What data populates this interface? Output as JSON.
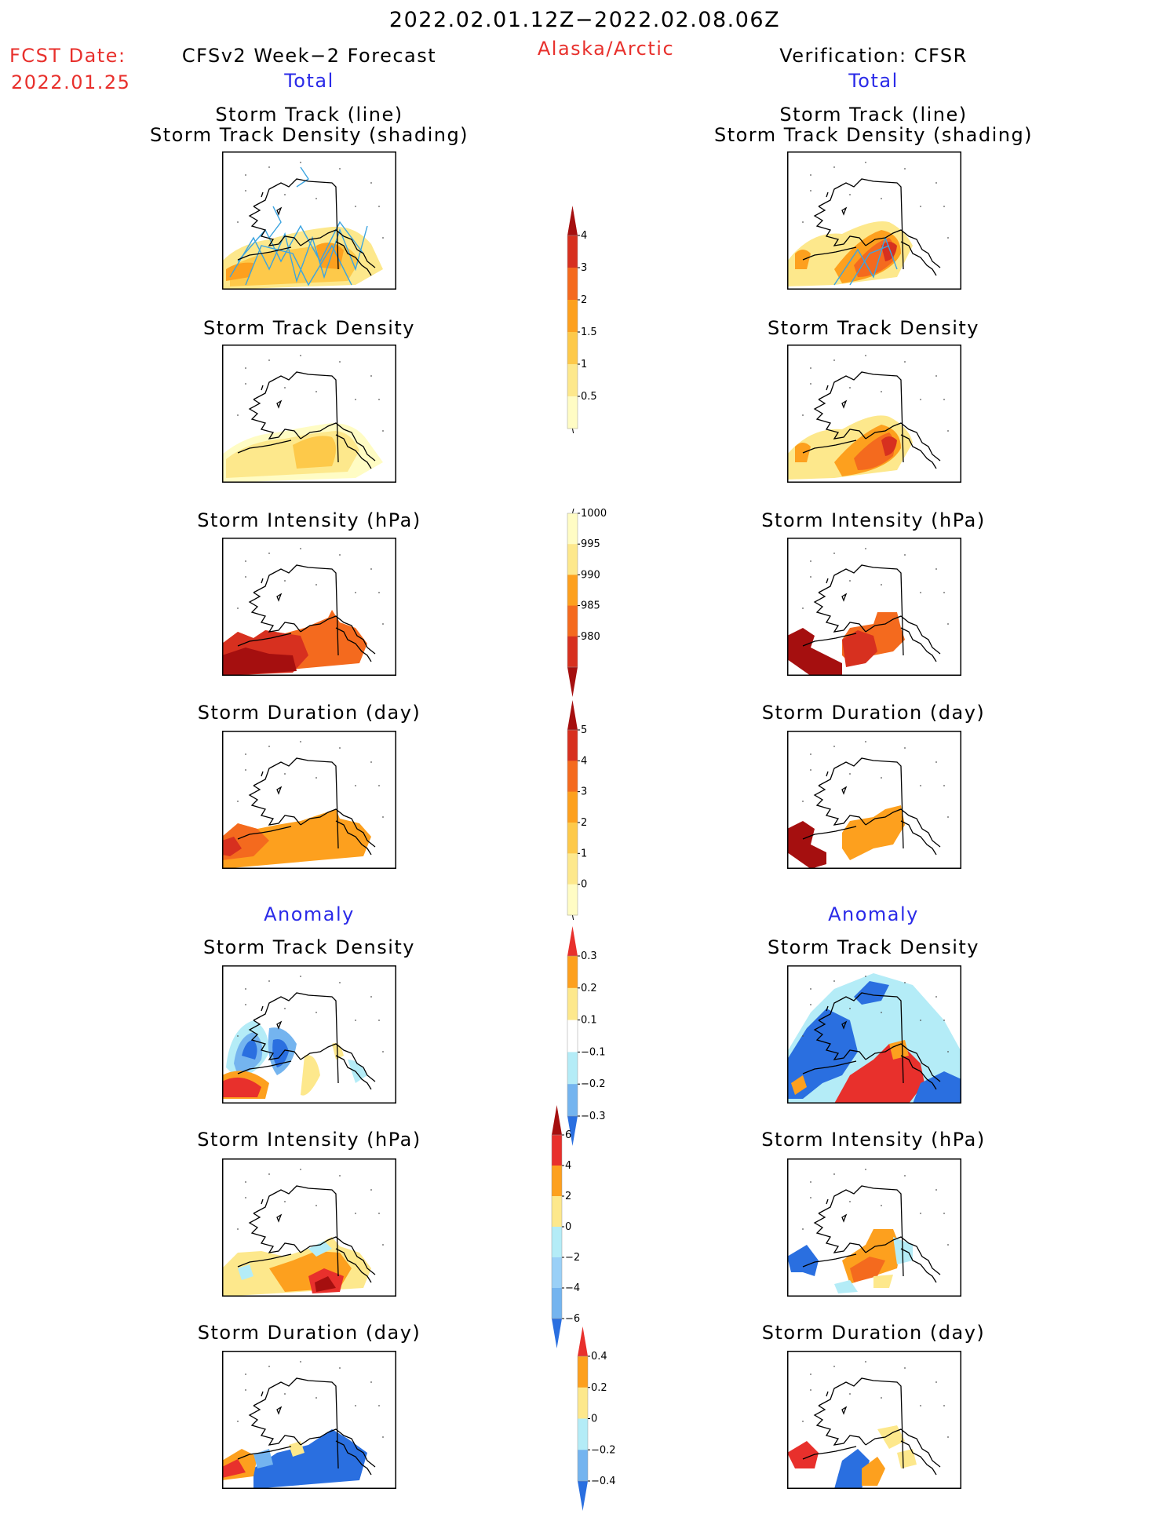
{
  "header": {
    "period": "2022.02.01.12Z−2022.02.08.06Z",
    "region": "Alaska/Arctic",
    "fcst_label": "FCST Date:",
    "fcst_date": "2022.01.25",
    "left_title": "CFSv2 Week−2 Forecast",
    "right_title": "Verification: CFSR",
    "left_total": "Total",
    "right_total": "Total",
    "left_anomaly": "Anomaly",
    "right_anomaly": "Anomaly"
  },
  "panel_titles": {
    "track_line": "Storm Track (line)",
    "track_shading": "Storm Track Density (shading)",
    "track_density": "Storm Track Density",
    "intensity": "Storm Intensity (hPa)",
    "duration": "Storm Duration (day)"
  },
  "colorbars": {
    "density_total": {
      "ticks": [
        "4",
        "3",
        "2",
        "1.5",
        "1",
        "0.5"
      ],
      "colors": [
        "#a50f0f",
        "#d7301f",
        "#f46a1e",
        "#fda01e",
        "#fdc94a",
        "#fde88c",
        "#fffcc4"
      ]
    },
    "intensity_total": {
      "ticks": [
        "1000",
        "995",
        "990",
        "985",
        "980"
      ],
      "colors": [
        "#fffcc4",
        "#fde88c",
        "#fda01e",
        "#f46a1e",
        "#d7301f",
        "#a50f0f"
      ]
    },
    "duration_total": {
      "ticks": [
        "5",
        "4",
        "3",
        "2",
        "1",
        "0"
      ],
      "colors": [
        "#a50f0f",
        "#d7301f",
        "#f46a1e",
        "#fda01e",
        "#fdc94a",
        "#fde88c",
        "#fffcc4"
      ]
    },
    "density_anom": {
      "ticks": [
        "0.3",
        "0.2",
        "0.1",
        "−0.1",
        "−0.2",
        "−0.3"
      ],
      "colors": [
        "#e8302c",
        "#fda01e",
        "#fde88c",
        "#ffffff",
        "#b4ecf7",
        "#74b4ef",
        "#2a6fe0"
      ]
    },
    "intensity_anom": {
      "ticks": [
        "6",
        "4",
        "2",
        "0",
        "−2",
        "−4",
        "−6"
      ],
      "colors": [
        "#a50f0f",
        "#e8302c",
        "#fda01e",
        "#fde88c",
        "#b4ecf7",
        "#9ad0f7",
        "#74b4ef",
        "#2a6fe0"
      ]
    },
    "duration_anom": {
      "ticks": [
        "0.4",
        "0.2",
        "0",
        "−0.2",
        "−0.4"
      ],
      "colors": [
        "#e8302c",
        "#fda01e",
        "#fde88c",
        "#b4ecf7",
        "#74b4ef",
        "#2a6fe0"
      ]
    }
  },
  "colors": {
    "red_text": "#e8302c",
    "blue_text": "#2a2ae8",
    "storm_track_line": "#3ca4e0"
  }
}
